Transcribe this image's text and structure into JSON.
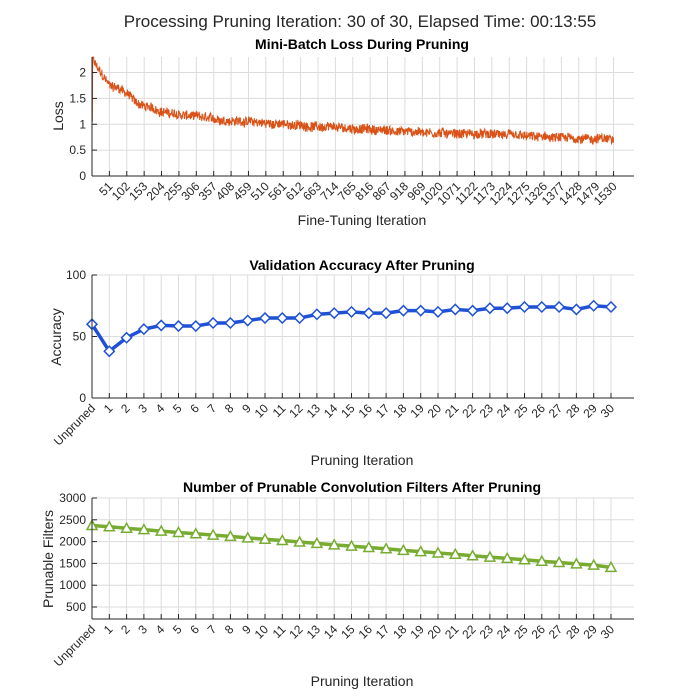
{
  "figure": {
    "suptitle": "Processing Pruning Iteration: 30 of 30, Elapsed Time: 00:13:55"
  },
  "chart_data": [
    {
      "type": "line",
      "title": "Mini-Batch Loss During Pruning",
      "xlabel": "Fine-Tuning Iteration",
      "ylabel": "Loss",
      "xlim": [
        0,
        1590
      ],
      "ylim": [
        0,
        2.3
      ],
      "grid": true,
      "color": "#D95319",
      "xticks": [
        51,
        102,
        153,
        204,
        255,
        306,
        357,
        408,
        459,
        510,
        561,
        612,
        663,
        714,
        765,
        816,
        867,
        918,
        969,
        1020,
        1071,
        1122,
        1173,
        1224,
        1275,
        1326,
        1377,
        1428,
        1479,
        1530
      ],
      "yticks": [
        0,
        0.5,
        1,
        1.5,
        2
      ],
      "ytick_labels": [
        "0",
        "0.5",
        "1",
        "1.5",
        "2"
      ],
      "series": [
        {
          "name": "Mini-Batch Loss",
          "x_range": [
            1,
            1530
          ],
          "trend_x": [
            1,
            10,
            30,
            51,
            80,
            102,
            130,
            153,
            204,
            255,
            306,
            357,
            408,
            459,
            510,
            561,
            612,
            663,
            714,
            765,
            816,
            867,
            918,
            969,
            1020,
            1071,
            1122,
            1173,
            1224,
            1275,
            1326,
            1377,
            1428,
            1479,
            1530
          ],
          "trend_y": [
            2.3,
            2.15,
            1.95,
            1.75,
            1.7,
            1.6,
            1.42,
            1.35,
            1.25,
            1.18,
            1.15,
            1.1,
            1.07,
            1.05,
            1.02,
            1.0,
            0.98,
            0.95,
            0.93,
            0.92,
            0.9,
            0.88,
            0.86,
            0.85,
            0.83,
            0.82,
            0.81,
            0.8,
            0.79,
            0.76,
            0.75,
            0.73,
            0.73,
            0.72,
            0.72
          ],
          "noise_amplitude": 0.09
        }
      ]
    },
    {
      "type": "line",
      "title": "Validation Accuracy After Pruning",
      "xlabel": "Pruning Iteration",
      "ylabel": "Accuracy",
      "ylim": [
        0,
        100
      ],
      "grid": true,
      "color": "#1F51D6",
      "marker": "diamond",
      "categories": [
        "Unpruned",
        "1",
        "2",
        "3",
        "4",
        "5",
        "6",
        "7",
        "8",
        "9",
        "10",
        "11",
        "12",
        "13",
        "14",
        "15",
        "16",
        "17",
        "18",
        "19",
        "20",
        "21",
        "22",
        "23",
        "24",
        "25",
        "26",
        "27",
        "28",
        "29",
        "30"
      ],
      "yticks": [
        0,
        50,
        100
      ],
      "series": [
        {
          "name": "Validation Accuracy",
          "values": [
            60,
            38,
            49,
            56,
            59,
            58.5,
            58.5,
            61,
            61,
            63,
            65,
            65,
            65,
            68,
            69,
            70,
            69,
            69,
            71,
            71,
            70,
            72,
            71,
            73,
            73,
            74,
            74,
            74,
            72,
            75,
            74
          ]
        }
      ]
    },
    {
      "type": "line",
      "title": "Number of Prunable Convolution Filters After Pruning",
      "xlabel": "Pruning Iteration",
      "ylabel": "Prunable Filters",
      "ylim": [
        225,
        3000
      ],
      "grid": true,
      "color": "#77AC30",
      "marker": "triangle",
      "categories": [
        "Unpruned",
        "1",
        "2",
        "3",
        "4",
        "5",
        "6",
        "7",
        "8",
        "9",
        "10",
        "11",
        "12",
        "13",
        "14",
        "15",
        "16",
        "17",
        "18",
        "19",
        "20",
        "21",
        "22",
        "23",
        "24",
        "25",
        "26",
        "27",
        "28",
        "29",
        "30"
      ],
      "yticks": [
        500,
        1000,
        1500,
        2000,
        2500,
        3000
      ],
      "series": [
        {
          "name": "Prunable Filters",
          "values": [
            2370,
            2340,
            2305,
            2275,
            2240,
            2210,
            2180,
            2150,
            2120,
            2085,
            2055,
            2025,
            1990,
            1960,
            1925,
            1895,
            1865,
            1835,
            1800,
            1770,
            1740,
            1710,
            1675,
            1645,
            1615,
            1585,
            1550,
            1520,
            1490,
            1460,
            1410
          ]
        }
      ]
    }
  ]
}
